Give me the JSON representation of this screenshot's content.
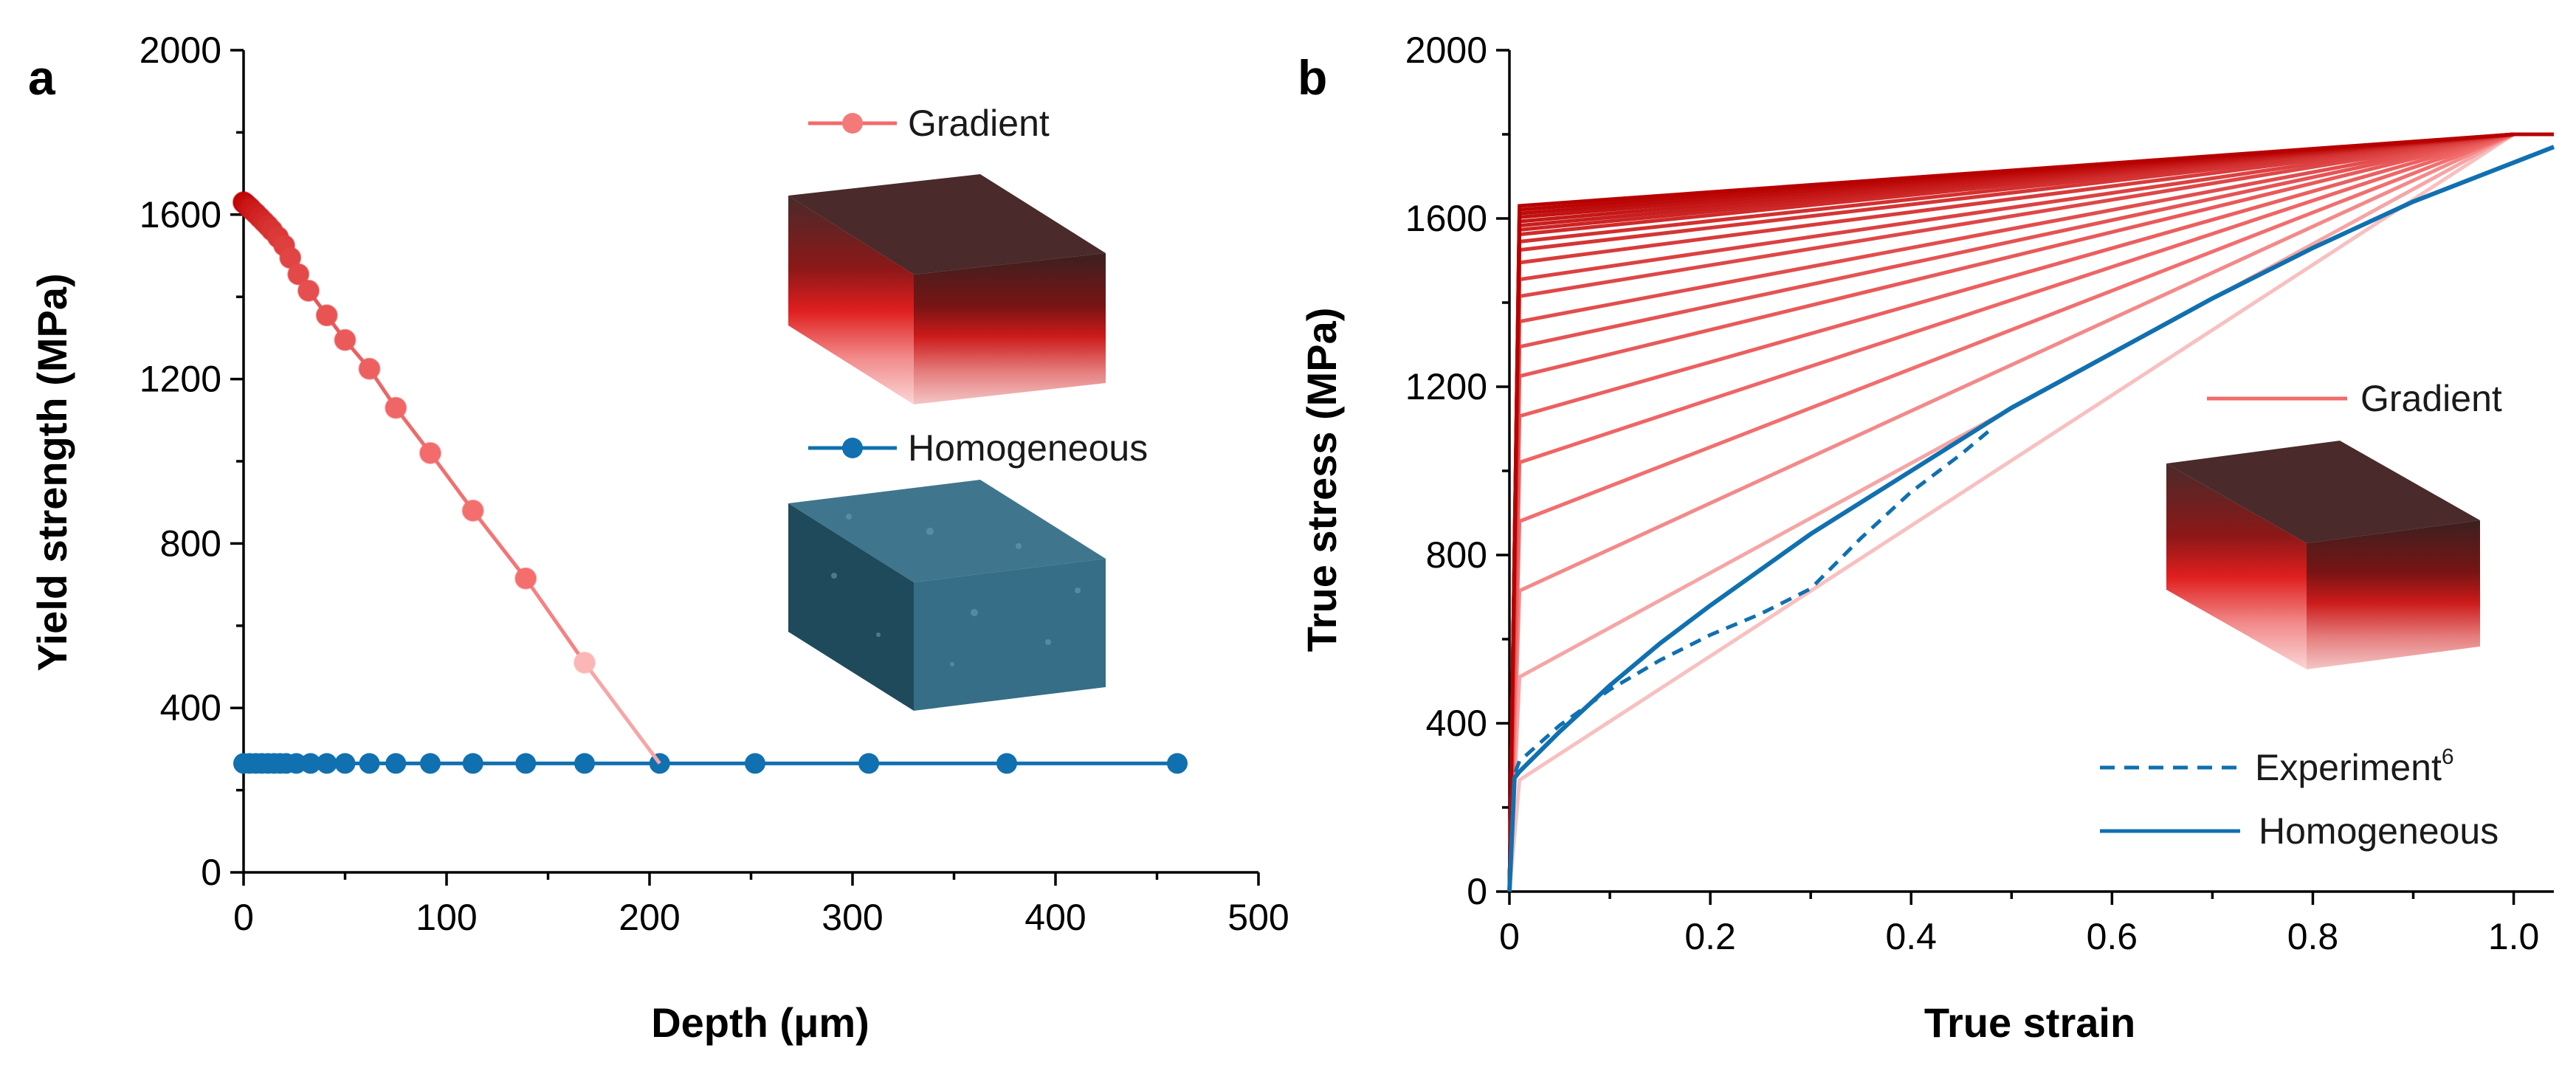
{
  "colors": {
    "gradient_dark": "#a00000",
    "gradient_light": "#ff7070",
    "gradient_line": "#f26b6b",
    "homogeneous": "#1070b0",
    "homo_block_top": "#356880",
    "homo_block_front": "#2f5e74",
    "homo_block_side": "#1f4656"
  },
  "chart_data": [
    {
      "panel": "a",
      "type": "scatter",
      "xlabel": "Depth (μm)",
      "ylabel": "Yield strength (MPa)",
      "xlim": [
        0,
        500
      ],
      "ylim": [
        0,
        2000
      ],
      "xticks": [
        0,
        100,
        200,
        300,
        400,
        500
      ],
      "yticks": [
        0,
        400,
        800,
        1200,
        1600,
        2000
      ],
      "x_tick_labels": [
        "0",
        "100",
        "200",
        "300",
        "400",
        "500"
      ],
      "y_tick_labels": [
        "0",
        "400",
        "800",
        "1200",
        "1600",
        "2000"
      ],
      "series": [
        {
          "name": "Gradient",
          "x": [
            0,
            1,
            2,
            3,
            4,
            6,
            8,
            10,
            12,
            14,
            17,
            20,
            23,
            27,
            32,
            41,
            50,
            62,
            75,
            92,
            113,
            139,
            168,
            205
          ],
          "y": [
            1630,
            1626,
            1621,
            1617,
            1612,
            1603,
            1593,
            1583,
            1573,
            1562,
            1545,
            1525,
            1495,
            1455,
            1415,
            1355,
            1295,
            1225,
            1130,
            1020,
            880,
            715,
            510,
            265
          ]
        },
        {
          "name": "Homogeneous",
          "x": [
            0,
            3,
            6,
            9,
            12,
            15,
            18,
            21,
            26,
            33,
            41,
            50,
            62,
            75,
            92,
            113,
            139,
            168,
            205,
            252,
            308,
            376,
            460
          ],
          "y": [
            265,
            265,
            265,
            265,
            265,
            265,
            265,
            265,
            265,
            265,
            265,
            265,
            265,
            265,
            265,
            265,
            265,
            265,
            265,
            265,
            265,
            265,
            265
          ]
        }
      ],
      "legend": [
        "Gradient",
        "Homogeneous"
      ]
    },
    {
      "panel": "b",
      "type": "line",
      "xlabel": "True strain",
      "ylabel": "True stress (MPa)",
      "xlim": [
        0,
        1.04
      ],
      "ylim": [
        0,
        2000
      ],
      "xticks": [
        0,
        0.2,
        0.4,
        0.6,
        0.8,
        1.0
      ],
      "yticks": [
        0,
        400,
        800,
        1200,
        1600,
        2000
      ],
      "x_tick_labels": [
        "0",
        "0.2",
        "0.4",
        "0.6",
        "0.8",
        "1.0"
      ],
      "y_tick_labels": [
        "0",
        "400",
        "800",
        "1200",
        "1600",
        "2000"
      ],
      "gradient_family": {
        "name": "Gradient",
        "yield_strain": 0.01,
        "end_strain": 1.0,
        "end_stress": 1800,
        "yield_stresses": [
          1630,
          1621,
          1612,
          1603,
          1593,
          1583,
          1573,
          1562,
          1545,
          1525,
          1495,
          1455,
          1415,
          1355,
          1295,
          1225,
          1130,
          1020,
          880,
          715,
          510,
          265
        ]
      },
      "series": [
        {
          "name": "Homogeneous",
          "x": [
            0,
            0.005,
            0.01,
            0.05,
            0.1,
            0.15,
            0.2,
            0.3,
            0.4,
            0.5,
            0.6,
            0.7,
            0.8,
            0.9,
            1.04
          ],
          "y": [
            0,
            270,
            285,
            380,
            490,
            590,
            680,
            850,
            1000,
            1150,
            1280,
            1410,
            1530,
            1640,
            1770
          ]
        },
        {
          "name": "Experiment",
          "style": "dashed",
          "x": [
            0,
            0.005,
            0.01,
            0.05,
            0.1,
            0.15,
            0.2,
            0.25,
            0.3,
            0.35,
            0.4,
            0.45,
            0.48
          ],
          "y": [
            0,
            280,
            310,
            395,
            480,
            550,
            610,
            660,
            720,
            840,
            950,
            1040,
            1100
          ]
        }
      ],
      "legend": [
        {
          "label": "Gradient"
        },
        {
          "label": "Experiment",
          "superscript": "6"
        },
        {
          "label": "Homogeneous"
        }
      ]
    }
  ]
}
